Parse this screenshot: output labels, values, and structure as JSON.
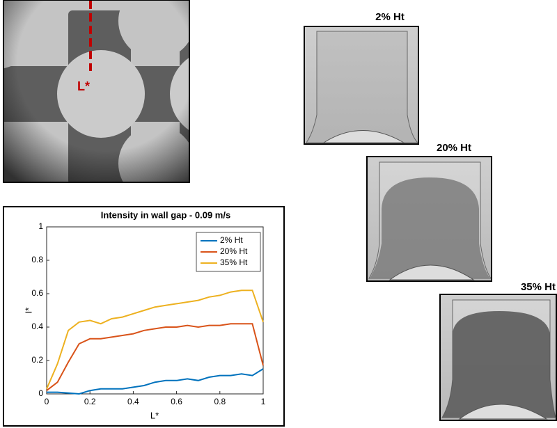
{
  "images": {
    "main_annotation": "L*",
    "panel_labels": [
      "2% Ht",
      "20% Ht",
      "35% Ht"
    ]
  },
  "chart_data": {
    "type": "line",
    "title": "Intensity in wall gap - 0.09 m/s",
    "xlabel": "L*",
    "ylabel": "I*",
    "x": [
      0,
      0.05,
      0.1,
      0.15,
      0.2,
      0.25,
      0.3,
      0.35,
      0.4,
      0.45,
      0.5,
      0.55,
      0.6,
      0.65,
      0.7,
      0.75,
      0.8,
      0.85,
      0.9,
      0.95,
      1
    ],
    "series": [
      {
        "name": "2% Ht",
        "color": "#0072bd",
        "values": [
          0.01,
          0.01,
          0.005,
          0,
          0.02,
          0.03,
          0.03,
          0.03,
          0.04,
          0.05,
          0.07,
          0.08,
          0.08,
          0.09,
          0.08,
          0.1,
          0.11,
          0.11,
          0.12,
          0.11,
          0.15
        ]
      },
      {
        "name": "20% Ht",
        "color": "#d95319",
        "values": [
          0.02,
          0.07,
          0.19,
          0.3,
          0.33,
          0.33,
          0.34,
          0.35,
          0.36,
          0.38,
          0.39,
          0.4,
          0.4,
          0.41,
          0.4,
          0.41,
          0.41,
          0.42,
          0.42,
          0.42,
          0.17
        ]
      },
      {
        "name": "35% Ht",
        "color": "#edb120",
        "values": [
          0.03,
          0.18,
          0.38,
          0.43,
          0.44,
          0.42,
          0.45,
          0.46,
          0.48,
          0.5,
          0.52,
          0.53,
          0.54,
          0.55,
          0.56,
          0.58,
          0.59,
          0.61,
          0.62,
          0.62,
          0.43
        ]
      }
    ],
    "xlim": [
      0,
      1
    ],
    "ylim": [
      0,
      1
    ],
    "xticks": [
      0,
      0.2,
      0.4,
      0.6,
      0.8,
      1
    ],
    "yticks": [
      0,
      0.2,
      0.4,
      0.6,
      0.8,
      1
    ],
    "legend": "upper right",
    "grid": false
  }
}
